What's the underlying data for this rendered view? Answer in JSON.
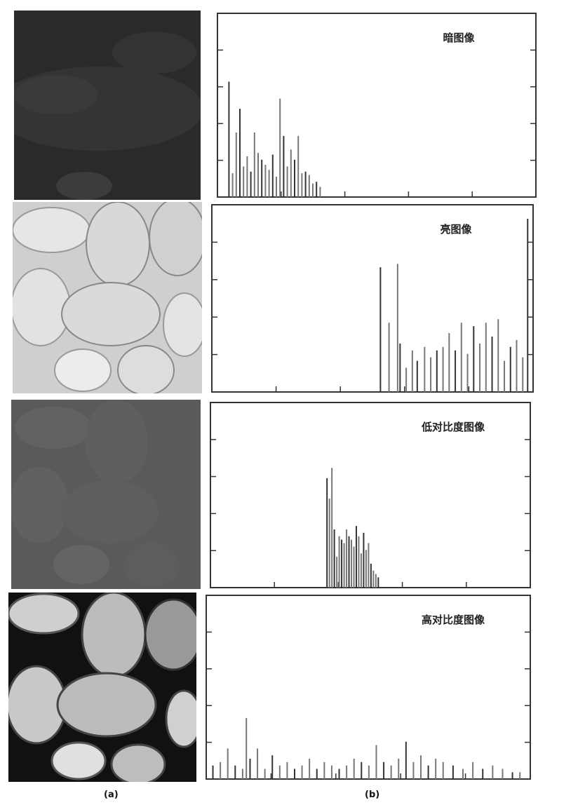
{
  "captions": {
    "left": "(a)",
    "right": "(b)"
  },
  "chart_data": [
    {
      "type": "bar",
      "title": "暗图像",
      "xlabel": "",
      "ylabel": "",
      "xlim": [
        0,
        255
      ],
      "ylim": [
        0,
        100
      ],
      "grid": false,
      "x": [
        6,
        9,
        12,
        15,
        18,
        21,
        24,
        27,
        30,
        33,
        36,
        39,
        42,
        45,
        48,
        51,
        54,
        57,
        60,
        63,
        66,
        69,
        72,
        75,
        78,
        81
      ],
      "values": [
        68,
        14,
        38,
        52,
        18,
        24,
        15,
        38,
        26,
        22,
        19,
        16,
        25,
        12,
        58,
        36,
        18,
        28,
        22,
        36,
        14,
        15,
        13,
        8,
        9,
        6
      ]
    },
    {
      "type": "bar",
      "title": "亮图像",
      "xlabel": "",
      "ylabel": "",
      "xlim": [
        0,
        255
      ],
      "ylim": [
        0,
        100
      ],
      "grid": false,
      "x": [
        134,
        141,
        148,
        150,
        155,
        160,
        164,
        170,
        175,
        180,
        185,
        190,
        195,
        200,
        205,
        210,
        215,
        220,
        225,
        230,
        235,
        240,
        245,
        250,
        254
      ],
      "values": [
        72,
        40,
        74,
        28,
        14,
        24,
        18,
        26,
        20,
        24,
        26,
        34,
        24,
        40,
        22,
        38,
        28,
        40,
        32,
        42,
        18,
        26,
        30,
        20,
        100
      ]
    },
    {
      "type": "bar",
      "title": "低对比度图像",
      "xlabel": "",
      "ylabel": "",
      "xlim": [
        0,
        255
      ],
      "ylim": [
        0,
        100
      ],
      "grid": false,
      "x": [
        92,
        94,
        96,
        98,
        100,
        102,
        104,
        106,
        108,
        110,
        112,
        114,
        116,
        118,
        120,
        122,
        124,
        126,
        128,
        130,
        132,
        134
      ],
      "values": [
        64,
        52,
        70,
        34,
        18,
        30,
        28,
        26,
        34,
        30,
        28,
        24,
        36,
        30,
        20,
        32,
        22,
        26,
        14,
        10,
        8,
        6
      ]
    },
    {
      "type": "bar",
      "title": "高对比度图像",
      "xlabel": "",
      "ylabel": "",
      "xlim": [
        0,
        255
      ],
      "ylim": [
        0,
        100
      ],
      "grid": false,
      "x": [
        2,
        8,
        14,
        20,
        26,
        29,
        32,
        38,
        44,
        50,
        56,
        62,
        68,
        74,
        80,
        86,
        92,
        98,
        104,
        110,
        116,
        122,
        128,
        134,
        140,
        146,
        152,
        158,
        164,
        170,
        176,
        182,
        188,
        196,
        204,
        212,
        220,
        228,
        236,
        244,
        250
      ],
      "values": [
        8,
        10,
        18,
        8,
        6,
        36,
        12,
        18,
        6,
        14,
        8,
        10,
        6,
        8,
        12,
        6,
        10,
        8,
        6,
        8,
        12,
        10,
        8,
        20,
        10,
        8,
        12,
        22,
        10,
        14,
        8,
        12,
        10,
        8,
        6,
        10,
        6,
        8,
        6,
        4,
        4
      ]
    }
  ]
}
